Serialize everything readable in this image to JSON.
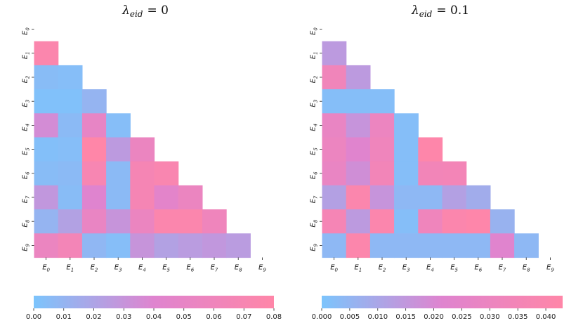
{
  "chart_data": [
    {
      "type": "heatmap",
      "title": "λ_eid = 0",
      "title_main": "λ",
      "title_sub": "eid",
      "title_value": "= 0",
      "row_labels": [
        "E_0",
        "E_1",
        "E_2",
        "E_3",
        "E_4",
        "E_5",
        "E_6",
        "E_7",
        "E_8",
        "E_9"
      ],
      "col_labels": [
        "E_0",
        "E_1",
        "E_2",
        "E_3",
        "E_4",
        "E_5",
        "E_6",
        "E_7",
        "E_8",
        "E_9"
      ],
      "matrix": [
        [
          null,
          null,
          null,
          null,
          null,
          null,
          null,
          null,
          null,
          null
        ],
        [
          0.075,
          null,
          null,
          null,
          null,
          null,
          null,
          null,
          null,
          null
        ],
        [
          0.005,
          0.004,
          null,
          null,
          null,
          null,
          null,
          null,
          null,
          null
        ],
        [
          0.002,
          0.002,
          0.01,
          null,
          null,
          null,
          null,
          null,
          null,
          null
        ],
        [
          0.035,
          0.006,
          0.05,
          0.004,
          null,
          null,
          null,
          null,
          null,
          null
        ],
        [
          0.003,
          0.004,
          0.08,
          0.026,
          0.055,
          null,
          null,
          null,
          null,
          null
        ],
        [
          0.005,
          0.006,
          0.07,
          0.006,
          0.068,
          0.072,
          null,
          null,
          null,
          null
        ],
        [
          0.028,
          0.005,
          0.04,
          0.006,
          0.068,
          0.045,
          0.055,
          null,
          null,
          null
        ],
        [
          0.01,
          0.022,
          0.052,
          0.03,
          0.055,
          0.075,
          0.075,
          0.06,
          null,
          null
        ],
        [
          0.055,
          0.065,
          0.008,
          0.004,
          0.03,
          0.022,
          0.025,
          0.028,
          0.025,
          null
        ]
      ],
      "colorbar": {
        "vmin": 0.0,
        "vmax": 0.08,
        "ticks": [
          "0.00",
          "0.01",
          "0.02",
          "0.03",
          "0.04",
          "0.05",
          "0.06",
          "0.07",
          "0.08"
        ]
      }
    },
    {
      "type": "heatmap",
      "title": "λ_eid = 0.1",
      "title_main": "λ",
      "title_sub": "eid",
      "title_value": "= 0.1",
      "row_labels": [
        "E_0",
        "E_1",
        "E_2",
        "E_3",
        "E_4",
        "E_5",
        "E_6",
        "E_7",
        "E_8",
        "E_9"
      ],
      "col_labels": [
        "E_0",
        "E_1",
        "E_2",
        "E_3",
        "E_4",
        "E_5",
        "E_6",
        "E_7",
        "E_8",
        "E_9"
      ],
      "matrix": [
        [
          null,
          null,
          null,
          null,
          null,
          null,
          null,
          null,
          null,
          null
        ],
        [
          0.014,
          null,
          null,
          null,
          null,
          null,
          null,
          null,
          null,
          null
        ],
        [
          0.033,
          0.014,
          null,
          null,
          null,
          null,
          null,
          null,
          null,
          null
        ],
        [
          0.002,
          0.002,
          0.002,
          null,
          null,
          null,
          null,
          null,
          null,
          null
        ],
        [
          0.028,
          0.016,
          0.03,
          0.002,
          null,
          null,
          null,
          null,
          null,
          null
        ],
        [
          0.03,
          0.022,
          0.032,
          0.002,
          0.042,
          null,
          null,
          null,
          null,
          null
        ],
        [
          0.028,
          0.018,
          0.034,
          0.002,
          0.034,
          0.035,
          null,
          null,
          null,
          null
        ],
        [
          0.012,
          0.04,
          0.016,
          0.004,
          0.004,
          0.012,
          0.008,
          null,
          null,
          null
        ],
        [
          0.036,
          0.014,
          0.04,
          0.002,
          0.032,
          0.04,
          0.042,
          0.006,
          null,
          null
        ],
        [
          0.004,
          0.041,
          0.004,
          0.004,
          0.004,
          0.004,
          0.004,
          0.022,
          0.004,
          null
        ]
      ],
      "colorbar": {
        "vmin": 0.0,
        "vmax": 0.043,
        "ticks": [
          "0.000",
          "0.005",
          "0.010",
          "0.015",
          "0.020",
          "0.025",
          "0.030",
          "0.035",
          "0.040"
        ]
      }
    }
  ]
}
